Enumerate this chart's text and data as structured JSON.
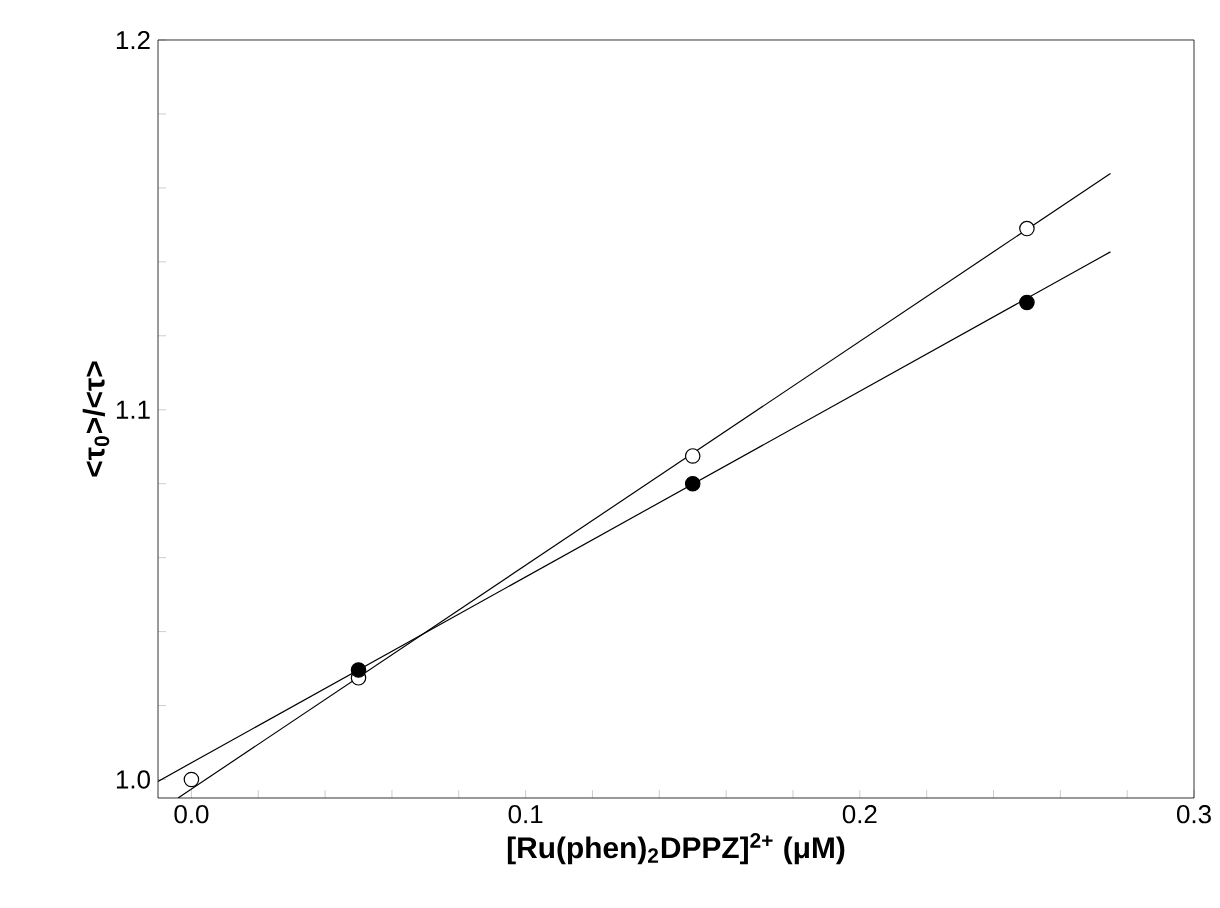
{
  "chart_data": {
    "type": "scatter",
    "xlabel": "[Ru(phen)$_{2}$DPPZ]$^{2+}$ (μM)",
    "ylabel": "<τ$_{0}$>/<τ>",
    "xlim": [
      -0.01,
      0.3
    ],
    "ylim": [
      0.995,
      1.2
    ],
    "xticks": [
      {
        "value": 0.0,
        "label": "0.0"
      },
      {
        "value": 0.02,
        "label": null
      },
      {
        "value": 0.04,
        "label": null
      },
      {
        "value": 0.06,
        "label": null
      },
      {
        "value": 0.08,
        "label": null
      },
      {
        "value": 0.1,
        "label": "0.1"
      },
      {
        "value": 0.12,
        "label": null
      },
      {
        "value": 0.14,
        "label": null
      },
      {
        "value": 0.16,
        "label": null
      },
      {
        "value": 0.18,
        "label": null
      },
      {
        "value": 0.2,
        "label": "0.2"
      },
      {
        "value": 0.22,
        "label": null
      },
      {
        "value": 0.24,
        "label": null
      },
      {
        "value": 0.26,
        "label": null
      },
      {
        "value": 0.28,
        "label": null
      },
      {
        "value": 0.3,
        "label": "0.3"
      }
    ],
    "yticks": [
      {
        "value": 1.0,
        "label": "1.0"
      },
      {
        "value": 1.02,
        "label": null
      },
      {
        "value": 1.04,
        "label": null
      },
      {
        "value": 1.06,
        "label": null
      },
      {
        "value": 1.08,
        "label": null
      },
      {
        "value": 1.1,
        "label": "1.1"
      },
      {
        "value": 1.12,
        "label": null
      },
      {
        "value": 1.14,
        "label": null
      },
      {
        "value": 1.16,
        "label": null
      },
      {
        "value": 1.18,
        "label": null
      },
      {
        "value": 1.2,
        "label": "1.2"
      }
    ],
    "marker": "circle",
    "series": [
      {
        "type": "line",
        "color": "#000000",
        "x": [
          -0.004,
          0.275
        ],
        "values": [
          0.995,
          1.1639
        ],
        "marker": "none"
      },
      {
        "type": "line",
        "color": "#000000",
        "x": [
          -0.01,
          0.275
        ],
        "values": [
          0.9995,
          1.1427
        ],
        "marker": "none"
      },
      {
        "color": "#ffffff",
        "x": [
          0.0,
          0.05,
          0.15,
          0.25
        ],
        "values": [
          1.0,
          1.0275,
          1.0875,
          1.149
        ]
      },
      {
        "color": "#000000",
        "x": [
          0.05,
          0.15,
          0.25
        ],
        "values": [
          1.0296,
          1.08,
          1.129
        ]
      }
    ]
  }
}
